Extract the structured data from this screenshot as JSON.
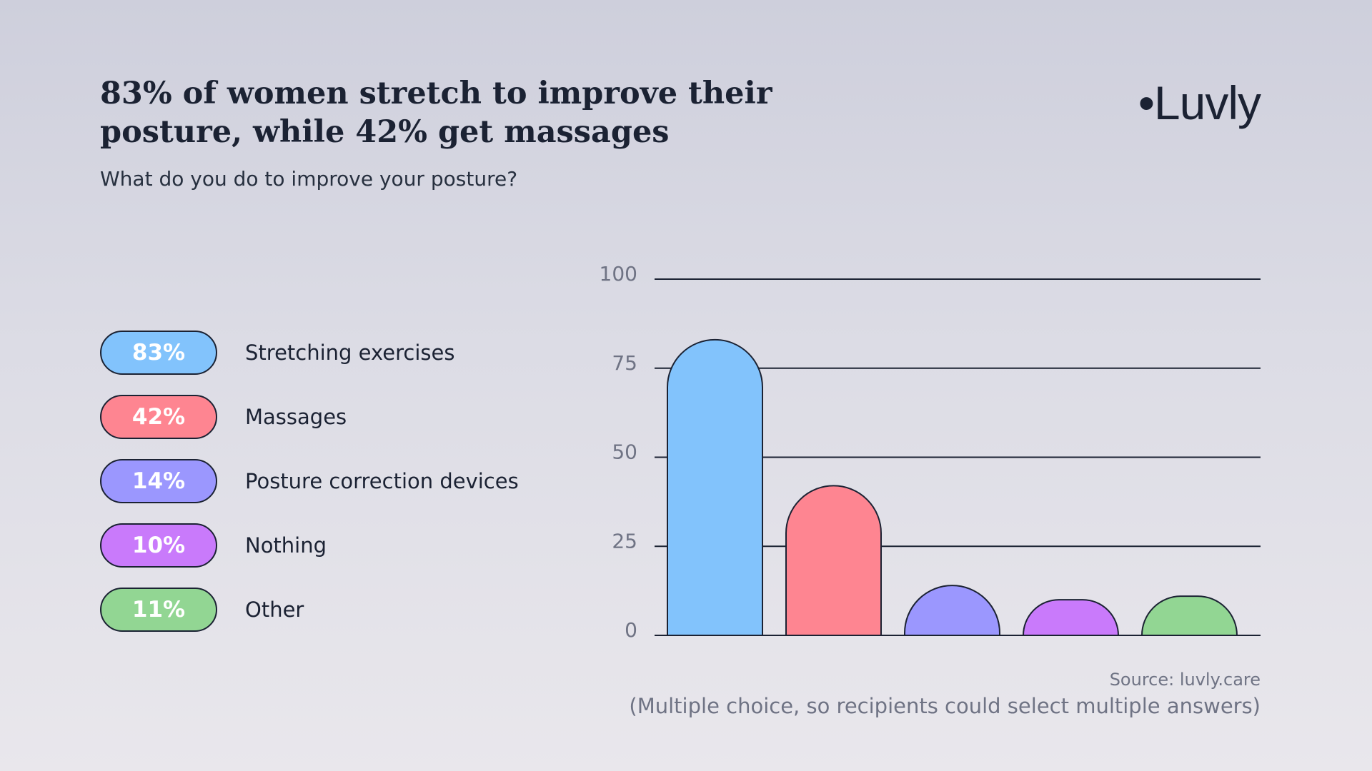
{
  "title_line1": "83% of women stretch to improve their",
  "title_line2": "posture, while 42% get massages",
  "subtitle": "What do you do to improve your posture?",
  "brand": "•Luvly",
  "source": "Source: luvly.care",
  "note": "(Multiple choice, so recipients could select multiple answers)",
  "colors": {
    "text": "#1b2233",
    "muted": "#6f7384",
    "outline": "#1b2233"
  },
  "legend": [
    {
      "value_label": "83%",
      "label": "Stretching exercises",
      "color": "#82c3fc"
    },
    {
      "value_label": "42%",
      "label": "Massages",
      "color": "#fe8591"
    },
    {
      "value_label": "14%",
      "label": "Posture correction devices",
      "color": "#9b97fe"
    },
    {
      "value_label": "10%",
      "label": "Nothing",
      "color": "#c97afb"
    },
    {
      "value_label": "11%",
      "label": "Other",
      "color": "#92d693"
    }
  ],
  "chart_data": {
    "type": "bar",
    "title": "83% of women stretch to improve their posture, while 42% get massages",
    "subtitle": "What do you do to improve your posture?",
    "categories": [
      "Stretching exercises",
      "Massages",
      "Posture correction devices",
      "Nothing",
      "Other"
    ],
    "values": [
      83,
      42,
      14,
      10,
      11
    ],
    "colors": [
      "#82c3fc",
      "#fe8591",
      "#9b97fe",
      "#c97afb",
      "#92d693"
    ],
    "ylim": [
      0,
      100
    ],
    "yticks": [
      "0",
      "25",
      "50",
      "75",
      "100"
    ],
    "grid": true,
    "xlabel": "",
    "ylabel": ""
  }
}
